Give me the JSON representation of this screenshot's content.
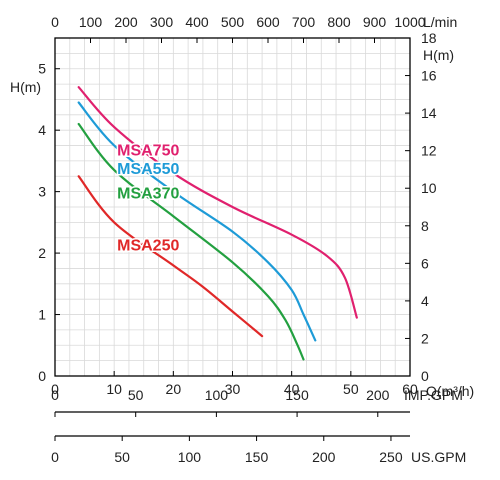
{
  "chart_data": {
    "type": "line",
    "title": "",
    "xlabel": "Q(m³/h)",
    "ylabel_left": "H(m)",
    "ylabel_right": "H(m)",
    "xlim": [
      0,
      60
    ],
    "ylim_left": [
      0,
      5.5
    ],
    "ylim_right": [
      0,
      18
    ],
    "grid": true,
    "x_ticks": [
      0,
      10,
      20,
      30,
      40,
      50,
      60
    ],
    "y_left_ticks": [
      0,
      1,
      2,
      3,
      4,
      5
    ],
    "y_right_ticks": [
      0,
      2,
      4,
      6,
      8,
      10,
      12,
      14,
      16,
      18
    ],
    "top_axis": {
      "label": "L/min",
      "ticks": [
        0,
        100,
        200,
        300,
        400,
        500,
        600,
        700,
        800,
        900,
        1000
      ]
    },
    "imp_gpm_axis": {
      "label": "IMP.GPM",
      "ticks": [
        0,
        50,
        100,
        150,
        200
      ]
    },
    "us_gpm_axis": {
      "label": "US.GPM",
      "ticks": [
        0,
        50,
        100,
        150,
        200,
        250
      ]
    },
    "series": [
      {
        "name": "MSA750",
        "color": "#e0206e",
        "points": [
          [
            4,
            4.7
          ],
          [
            10,
            4.05
          ],
          [
            20,
            3.3
          ],
          [
            30,
            2.75
          ],
          [
            40,
            2.3
          ],
          [
            46,
            1.95
          ],
          [
            49,
            1.6
          ],
          [
            51,
            0.95
          ]
        ]
      },
      {
        "name": "MSA550",
        "color": "#1e9bd7",
        "points": [
          [
            4,
            4.45
          ],
          [
            10,
            3.75
          ],
          [
            20,
            3.0
          ],
          [
            30,
            2.35
          ],
          [
            36,
            1.85
          ],
          [
            40,
            1.4
          ],
          [
            42,
            1.0
          ],
          [
            44,
            0.58
          ]
        ]
      },
      {
        "name": "MSA370",
        "color": "#23a040",
        "points": [
          [
            4,
            4.1
          ],
          [
            10,
            3.35
          ],
          [
            20,
            2.6
          ],
          [
            30,
            1.85
          ],
          [
            36,
            1.3
          ],
          [
            39,
            0.9
          ],
          [
            41,
            0.5
          ],
          [
            42,
            0.27
          ]
        ]
      },
      {
        "name": "MSA250",
        "color": "#e02828",
        "points": [
          [
            4,
            3.25
          ],
          [
            10,
            2.5
          ],
          [
            20,
            1.8
          ],
          [
            25,
            1.45
          ],
          [
            30,
            1.05
          ],
          [
            35,
            0.65
          ]
        ]
      }
    ]
  }
}
